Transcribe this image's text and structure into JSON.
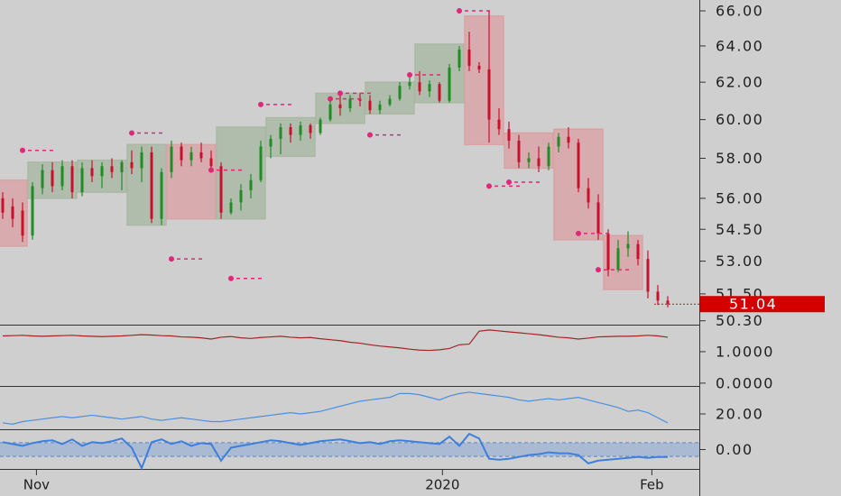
{
  "chart_data": [
    {
      "type": "candlestick",
      "log_scale": true,
      "ylim": [
        50.13,
        66.63
      ],
      "yticks": [
        {
          "value": 66,
          "label": "66.00"
        },
        {
          "value": 64,
          "label": "64.00"
        },
        {
          "value": 62,
          "label": "62.00"
        },
        {
          "value": 60,
          "label": "60.00"
        },
        {
          "value": 58,
          "label": "58.00"
        },
        {
          "value": 56,
          "label": "56.00"
        },
        {
          "value": 54.5,
          "label": "54.50"
        },
        {
          "value": 53,
          "label": "53.00"
        },
        {
          "value": 51.5,
          "label": "51.50"
        },
        {
          "value": 50.3,
          "label": "50.30"
        }
      ],
      "xticks": [
        {
          "value": 3.4,
          "label": "Nov"
        },
        {
          "value": 44.3,
          "label": "2020"
        },
        {
          "value": 65.4,
          "label": "Feb"
        }
      ],
      "open": [
        56.0,
        55.6,
        55.4,
        54.2,
        56.5,
        57.4,
        56.6,
        57.6,
        56.3,
        57.5,
        57.1,
        57.6,
        57.3,
        57.8,
        57.5,
        58.3,
        55.0,
        57.3,
        58.6,
        57.9,
        58.3,
        58.0,
        57.6,
        55.3,
        55.8,
        56.4,
        56.9,
        58.6,
        59.0,
        59.6,
        59.2,
        59.7,
        59.3,
        60.0,
        60.8,
        60.6,
        61.1,
        61.0,
        60.5,
        60.8,
        61.1,
        61.8,
        62.0,
        61.5,
        61.9,
        61.0,
        62.8,
        63.8,
        62.9,
        62.7,
        60.0,
        59.5,
        58.9,
        57.8,
        58.0,
        57.6,
        58.6,
        59.1,
        58.8,
        56.5,
        55.8,
        54.3,
        52.6,
        53.6,
        53.8,
        53.1,
        51.6,
        51.2
      ],
      "high": [
        56.3,
        56.0,
        55.8,
        56.8,
        57.7,
        57.8,
        57.9,
        57.9,
        57.8,
        57.9,
        57.8,
        58.0,
        57.9,
        58.4,
        58.6,
        58.6,
        57.5,
        58.9,
        58.8,
        58.6,
        58.8,
        58.4,
        57.8,
        56.0,
        56.7,
        57.2,
        58.9,
        59.2,
        59.8,
        59.8,
        59.9,
        59.8,
        60.1,
        61.0,
        61.3,
        61.3,
        61.4,
        61.3,
        61.0,
        61.3,
        62.0,
        62.3,
        62.6,
        62.1,
        62.0,
        63.0,
        64.0,
        64.8,
        63.1,
        66.0,
        60.6,
        59.9,
        59.2,
        58.3,
        58.6,
        58.8,
        59.3,
        59.6,
        59.0,
        57.0,
        56.2,
        54.5,
        54.0,
        54.4,
        54.0,
        53.5,
        51.9,
        51.4
      ],
      "low": [
        55.0,
        54.6,
        53.9,
        54.0,
        56.2,
        56.3,
        56.4,
        56.0,
        56.1,
        56.8,
        56.5,
        57.0,
        56.4,
        57.2,
        56.8,
        54.8,
        54.7,
        57.0,
        57.6,
        57.6,
        57.8,
        57.4,
        55.0,
        55.2,
        55.4,
        56.0,
        56.8,
        58.0,
        58.2,
        58.8,
        58.9,
        59.0,
        59.2,
        59.9,
        60.2,
        60.4,
        60.7,
        60.3,
        60.3,
        60.7,
        61.0,
        61.6,
        61.3,
        61.2,
        60.9,
        60.9,
        62.6,
        62.6,
        62.5,
        58.8,
        59.2,
        58.5,
        57.5,
        57.5,
        57.3,
        57.4,
        58.3,
        58.5,
        56.3,
        55.5,
        54.0,
        52.3,
        52.5,
        53.2,
        52.8,
        51.3,
        51.0,
        50.9
      ],
      "close": [
        55.3,
        55.0,
        54.2,
        56.6,
        57.4,
        56.6,
        57.6,
        56.3,
        57.5,
        57.1,
        57.6,
        57.3,
        57.8,
        57.5,
        58.3,
        55.0,
        57.3,
        58.6,
        57.9,
        58.3,
        58.0,
        57.6,
        55.3,
        55.8,
        56.4,
        56.9,
        58.6,
        59.0,
        59.6,
        59.2,
        59.7,
        59.3,
        60.0,
        60.8,
        60.6,
        61.1,
        61.0,
        60.5,
        60.8,
        61.1,
        61.8,
        62.0,
        61.5,
        61.9,
        61.0,
        62.8,
        63.8,
        62.9,
        62.7,
        60.0,
        59.5,
        58.9,
        57.8,
        58.0,
        57.6,
        58.6,
        59.1,
        58.8,
        56.5,
        55.8,
        54.3,
        52.6,
        53.6,
        53.8,
        53.1,
        51.6,
        51.2,
        51.04
      ],
      "up_color": "#1f8c24",
      "down_color": "#c8102e",
      "boxes": [
        {
          "start": 0,
          "end": 2,
          "low": 53.7,
          "high": 56.9,
          "color": "#d9a3a5"
        },
        {
          "start": 3,
          "end": 7,
          "low": 56.0,
          "high": 57.8,
          "color": "#a9b8a3"
        },
        {
          "start": 8,
          "end": 12,
          "low": 56.3,
          "high": 57.9,
          "color": "#a9b8a3"
        },
        {
          "start": 13,
          "end": 16,
          "low": 54.7,
          "high": 58.7,
          "color": "#a9b8a3"
        },
        {
          "start": 17,
          "end": 21,
          "low": 55.0,
          "high": 58.7,
          "color": "#d9a3a5"
        },
        {
          "start": 22,
          "end": 26,
          "low": 55.0,
          "high": 59.6,
          "color": "#a9b8a3"
        },
        {
          "start": 27,
          "end": 31,
          "low": 58.1,
          "high": 60.1,
          "color": "#a9b8a3"
        },
        {
          "start": 32,
          "end": 36,
          "low": 59.8,
          "high": 61.4,
          "color": "#a9b8a3"
        },
        {
          "start": 37,
          "end": 41,
          "low": 60.3,
          "high": 62.0,
          "color": "#a9b8a3"
        },
        {
          "start": 42,
          "end": 46,
          "low": 60.9,
          "high": 64.1,
          "color": "#a9b8a3"
        },
        {
          "start": 47,
          "end": 50,
          "low": 58.7,
          "high": 65.7,
          "color": "#d9a3a5"
        },
        {
          "start": 51,
          "end": 55,
          "low": 57.5,
          "high": 59.3,
          "color": "#d9a3a5"
        },
        {
          "start": 56,
          "end": 60,
          "low": 54.0,
          "high": 59.5,
          "color": "#d9a3a5"
        },
        {
          "start": 61,
          "end": 64,
          "low": 51.7,
          "high": 54.2,
          "color": "#d9a3a5"
        }
      ],
      "markers": {
        "x": [
          2,
          13,
          17,
          21,
          23,
          26,
          33,
          34,
          37,
          41,
          46,
          49,
          51,
          58,
          60
        ],
        "values": [
          58.4,
          59.3,
          53.1,
          57.4,
          52.2,
          60.8,
          61.1,
          61.4,
          59.2,
          62.4,
          66.0,
          56.6,
          56.8,
          54.3,
          52.6
        ],
        "color": "#e0287a"
      },
      "last_price": {
        "value": 51.04,
        "label": "51.04"
      }
    },
    {
      "type": "line",
      "ylim": [
        -0.09,
        1.83
      ],
      "yticks": [
        {
          "value": 1,
          "label": "1.0000"
        },
        {
          "value": 0,
          "label": "0.0000"
        }
      ],
      "series": [
        {
          "color": "#a32424",
          "values": [
            1.5,
            1.51,
            1.52,
            1.5,
            1.49,
            1.5,
            1.51,
            1.52,
            1.5,
            1.49,
            1.48,
            1.49,
            1.5,
            1.52,
            1.54,
            1.53,
            1.51,
            1.5,
            1.47,
            1.46,
            1.44,
            1.4,
            1.46,
            1.48,
            1.44,
            1.42,
            1.45,
            1.47,
            1.49,
            1.46,
            1.44,
            1.45,
            1.41,
            1.38,
            1.35,
            1.3,
            1.27,
            1.22,
            1.18,
            1.15,
            1.12,
            1.08,
            1.05,
            1.04,
            1.06,
            1.1,
            1.22,
            1.24,
            1.65,
            1.69,
            1.66,
            1.63,
            1.6,
            1.57,
            1.54,
            1.5,
            1.46,
            1.44,
            1.4,
            1.43,
            1.47,
            1.48,
            1.49,
            1.49,
            1.5,
            1.52,
            1.5,
            1.46
          ]
        }
      ]
    },
    {
      "type": "line",
      "ylim": [
        8,
        41.2
      ],
      "yticks": [
        {
          "value": 20,
          "label": "20.00"
        }
      ],
      "series": [
        {
          "color": "#4a90e2",
          "values": [
            13,
            12,
            14,
            15,
            16,
            17,
            18,
            17,
            18,
            19,
            18,
            17,
            16,
            17,
            18,
            16,
            15,
            16,
            17,
            16,
            15,
            14,
            14,
            15,
            16,
            17,
            18,
            19,
            20,
            21,
            20,
            21,
            22,
            24,
            26,
            28,
            30,
            31,
            32,
            33,
            36,
            36,
            35,
            33,
            31,
            34,
            36,
            37,
            36,
            35,
            34,
            33,
            31,
            30,
            31,
            32,
            31,
            32,
            33,
            31,
            29,
            27,
            25,
            22,
            23,
            21,
            17,
            13
          ]
        }
      ]
    },
    {
      "type": "line",
      "ylim": [
        -1.05,
        1.05
      ],
      "band": [
        -0.37,
        0.37
      ],
      "yticks": [
        {
          "value": 0,
          "label": "0.00"
        }
      ],
      "series": [
        {
          "color": "#3c7fdc",
          "values": [
            0.4,
            0.3,
            0.2,
            0.35,
            0.45,
            0.5,
            0.3,
            0.55,
            0.2,
            0.4,
            0.35,
            0.45,
            0.6,
            0.1,
            -1.0,
            0.4,
            0.55,
            0.3,
            0.45,
            0.2,
            0.35,
            0.3,
            -0.6,
            0.1,
            0.2,
            0.3,
            0.4,
            0.5,
            0.45,
            0.35,
            0.25,
            0.35,
            0.45,
            0.5,
            0.55,
            0.45,
            0.35,
            0.4,
            0.3,
            0.45,
            0.5,
            0.45,
            0.4,
            0.35,
            0.3,
            0.7,
            0.2,
            0.85,
            0.6,
            -0.5,
            -0.55,
            -0.5,
            -0.4,
            -0.3,
            -0.25,
            -0.15,
            -0.2,
            -0.2,
            -0.3,
            -0.75,
            -0.6,
            -0.55,
            -0.5,
            -0.45,
            -0.4,
            -0.45,
            -0.4,
            -0.4
          ]
        }
      ]
    }
  ]
}
